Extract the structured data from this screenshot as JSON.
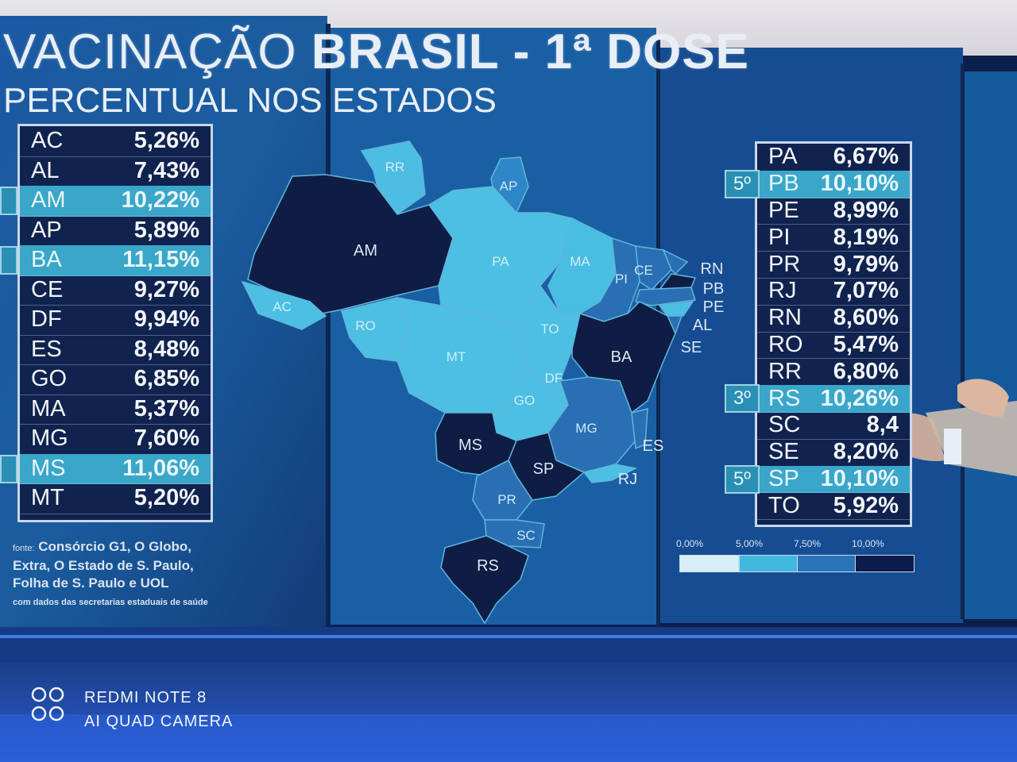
{
  "title": {
    "prefix": "VACINAÇÃO ",
    "bold": "BRASIL - 1ª DOSE",
    "subtitle": "PERCENTUAL NOS ESTADOS"
  },
  "left_table": [
    {
      "uf": "AC",
      "value": "5,26%",
      "highlight": false
    },
    {
      "uf": "AL",
      "value": "7,43%",
      "highlight": false
    },
    {
      "uf": "AM",
      "value": "10,22%",
      "highlight": true
    },
    {
      "uf": "AP",
      "value": "5,89%",
      "highlight": false
    },
    {
      "uf": "BA",
      "value": "11,15%",
      "highlight": true
    },
    {
      "uf": "CE",
      "value": "9,27%",
      "highlight": false
    },
    {
      "uf": "DF",
      "value": "9,94%",
      "highlight": false
    },
    {
      "uf": "ES",
      "value": "8,48%",
      "highlight": false
    },
    {
      "uf": "GO",
      "value": "6,85%",
      "highlight": false
    },
    {
      "uf": "MA",
      "value": "5,37%",
      "highlight": false
    },
    {
      "uf": "MG",
      "value": "7,60%",
      "highlight": false
    },
    {
      "uf": "MS",
      "value": "11,06%",
      "highlight": true
    },
    {
      "uf": "MT",
      "value": "5,20%",
      "highlight": false
    }
  ],
  "right_table": [
    {
      "uf": "PA",
      "value": "6,67%",
      "highlight": false,
      "rank": ""
    },
    {
      "uf": "PB",
      "value": "10,10%",
      "highlight": true,
      "rank": "5º"
    },
    {
      "uf": "PE",
      "value": "8,99%",
      "highlight": false,
      "rank": ""
    },
    {
      "uf": "PI",
      "value": "8,19%",
      "highlight": false,
      "rank": ""
    },
    {
      "uf": "PR",
      "value": "9,79%",
      "highlight": false,
      "rank": ""
    },
    {
      "uf": "RJ",
      "value": "7,07%",
      "highlight": false,
      "rank": ""
    },
    {
      "uf": "RN",
      "value": "8,60%",
      "highlight": false,
      "rank": ""
    },
    {
      "uf": "RO",
      "value": "5,47%",
      "highlight": false,
      "rank": ""
    },
    {
      "uf": "RR",
      "value": "6,80%",
      "highlight": false,
      "rank": ""
    },
    {
      "uf": "RS",
      "value": "10,26%",
      "highlight": true,
      "rank": "3º"
    },
    {
      "uf": "SC",
      "value": "8,4",
      "highlight": false,
      "rank": ""
    },
    {
      "uf": "SE",
      "value": "8,20%",
      "highlight": false,
      "rank": ""
    },
    {
      "uf": "SP",
      "value": "10,10%",
      "highlight": true,
      "rank": "5º"
    },
    {
      "uf": "TO",
      "value": "5,92%",
      "highlight": false,
      "rank": ""
    }
  ],
  "source": {
    "label": "fonte:",
    "text1": "Consórcio G1, O Globo,",
    "text2": "Extra, O Estado de S. Paulo,",
    "text3": "Folha de S. Paulo e UOL",
    "note": "com dados das secretarias estaduais de saúde"
  },
  "legend": {
    "labels": [
      "0,00%",
      "5,00%",
      "7,50%",
      "10,00%"
    ],
    "colors": [
      "#d7f0f8",
      "#41b9de",
      "#2b73b8",
      "#0d1c4a"
    ]
  },
  "map_labels": [
    "RR",
    "AP",
    "AM",
    "PA",
    "MA",
    "CE",
    "RN",
    "PB",
    "PE",
    "AL",
    "SE",
    "PI",
    "AC",
    "RO",
    "TO",
    "MT",
    "BA",
    "DF",
    "GO",
    "MG",
    "ES",
    "MS",
    "SP",
    "RJ",
    "PR",
    "SC",
    "RS"
  ],
  "watermark": {
    "line1": "REDMI NOTE 8",
    "line2": "AI QUAD CAMERA"
  },
  "colors": {
    "screen_bg": "#0e3a78",
    "highlight_row": "#3aa6c9",
    "dark_state": "#0f1d45",
    "light_state": "#3fb6da",
    "mid_state": "#2a6fb4"
  }
}
